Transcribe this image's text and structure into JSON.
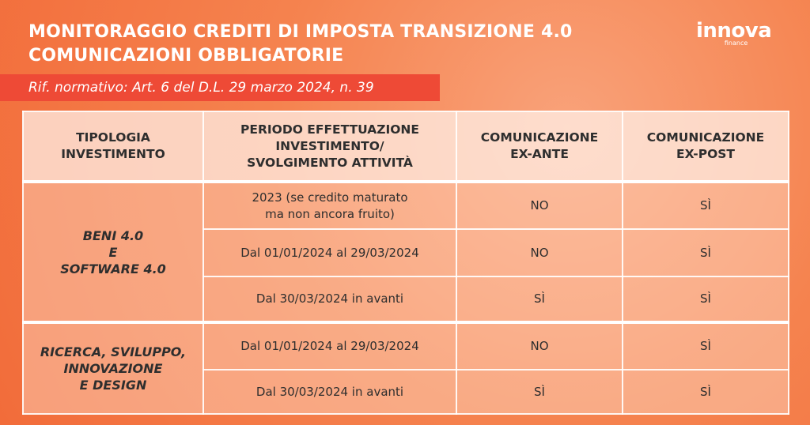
{
  "header": {
    "title_lines": [
      "MONITORAGGIO CREDITI DI IMPOSTA TRANSIZIONE 4.0",
      "COMUNICAZIONI OBBLIGATORIE"
    ],
    "reference": "Rif. normativo: Art. 6 del D.L. 29 marzo 2024, n. 39"
  },
  "logo": {
    "name": "innova",
    "tagline": "finance"
  },
  "table": {
    "columns": [
      [
        "TIPOLOGIA",
        "INVESTIMENTO"
      ],
      [
        "PERIODO EFFETTUAZIONE",
        "INVESTIMENTO/",
        "SVOLGIMENTO ATTIVITÀ"
      ],
      [
        "COMUNICAZIONE",
        "EX-ANTE"
      ],
      [
        "COMUNICAZIONE",
        "EX-POST"
      ]
    ],
    "groups": [
      {
        "label": [
          "BENI 4.0",
          "E",
          "SOFTWARE 4.0"
        ],
        "rows": [
          [
            [
              "2023 (se credito maturato",
              "ma non ancora fruito)"
            ],
            "NO",
            "SÌ"
          ],
          [
            [
              "Dal 01/01/2024 al 29/03/2024"
            ],
            "NO",
            "SÌ"
          ],
          [
            [
              "Dal 30/03/2024 in avanti"
            ],
            "SÌ",
            "SÌ"
          ]
        ]
      },
      {
        "label": [
          "RICERCA, SVILUPPO,",
          "INNOVAZIONE",
          "E DESIGN"
        ],
        "rows": [
          [
            [
              "Dal 01/01/2024 al 29/03/2024"
            ],
            "NO",
            "SÌ"
          ],
          [
            [
              "Dal 30/03/2024 in avanti"
            ],
            "SÌ",
            "SÌ"
          ]
        ]
      }
    ]
  }
}
